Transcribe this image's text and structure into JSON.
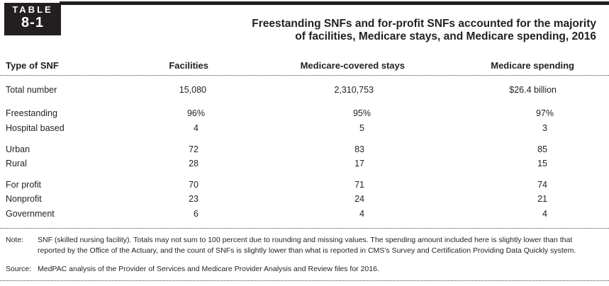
{
  "table_label": {
    "word": "TABLE",
    "number": "8-1"
  },
  "title": [
    "Freestanding SNFs and for-profit SNFs accounted for the majority",
    "of facilities, Medicare stays, and Medicare spending, 2016"
  ],
  "columns": [
    "Type of SNF",
    "Facilities",
    "Medicare-covered stays",
    "Medicare spending"
  ],
  "rows": [
    [
      "Total number",
      "15,080",
      "2,310,753",
      "$26.4 billion"
    ],
    [
      "Freestanding",
      "96%",
      "95%",
      "97%"
    ],
    [
      "Hospital based",
      "4",
      "5",
      "3"
    ],
    [
      "Urban",
      "72",
      "83",
      "85"
    ],
    [
      "Rural",
      "28",
      "17",
      "15"
    ],
    [
      "For profit",
      "70",
      "71",
      "74"
    ],
    [
      "Nonprofit",
      "23",
      "24",
      "21"
    ],
    [
      "Government",
      "6",
      "4",
      "4"
    ]
  ],
  "note": {
    "label": "Note:",
    "text": "SNF (skilled nursing facility). Totals may not sum to 100 percent due to rounding and missing values. The spending amount included here is slightly lower than that reported by the Office of the Actuary, and the count of SNFs is slightly lower than what is reported in CMS’s Survey and Certification Providing Data Quickly system."
  },
  "source": {
    "label": "Source:",
    "text": "MedPAC analysis of the Provider of Services and Medicare Provider Analysis and Review files for 2016."
  }
}
